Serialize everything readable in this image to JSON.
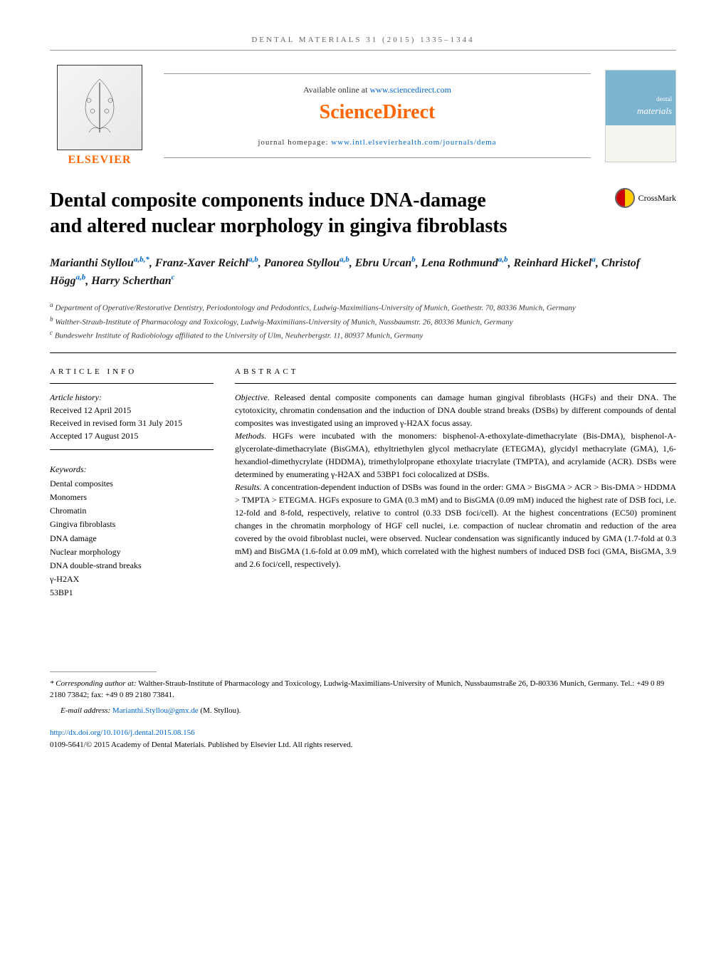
{
  "journal_header": "DENTAL MATERIALS 31 (2015) 1335–1344",
  "available_online": "Available online at",
  "sd_url": "www.sciencedirect.com",
  "sciencedirect": "ScienceDirect",
  "homepage_label": "journal homepage:",
  "homepage_url": "www.intl.elsevierhealth.com/journals/dema",
  "elsevier": "ELSEVIER",
  "cover_main": "materials",
  "cover_sub": "dental",
  "crossmark": "CrossMark",
  "title": "Dental composite components induce DNA-damage and altered nuclear morphology in gingiva fibroblasts",
  "authors_html": "Marianthi Styllou<sup>a,b,*</sup>, Franz-Xaver Reichl<sup>a,b</sup>, Panorea Styllou<sup>a,b</sup>, Ebru Urcan<sup>b</sup>, Lena Rothmund<sup>a,b</sup>, Reinhard Hickel<sup>a</sup>, Christof Högg<sup>a,b</sup>, Harry Scherthan<sup>c</sup>",
  "authors": [
    {
      "name": "Marianthi Styllou",
      "aff": "a,b,*"
    },
    {
      "name": "Franz-Xaver Reichl",
      "aff": "a,b"
    },
    {
      "name": "Panorea Styllou",
      "aff": "a,b"
    },
    {
      "name": "Ebru Urcan",
      "aff": "b"
    },
    {
      "name": "Lena Rothmund",
      "aff": "a,b"
    },
    {
      "name": "Reinhard Hickel",
      "aff": "a"
    },
    {
      "name": "Christof Högg",
      "aff": "a,b"
    },
    {
      "name": "Harry Scherthan",
      "aff": "c"
    }
  ],
  "affiliations": [
    {
      "sup": "a",
      "text": "Department of Operative/Restorative Dentistry, Periodontology and Pedodontics, Ludwig-Maximilians-University of Munich, Goethestr. 70, 80336 Munich, Germany"
    },
    {
      "sup": "b",
      "text": "Walther-Straub-Institute of Pharmacology and Toxicology, Ludwig-Maximilians-University of Munich, Nussbaumstr. 26, 80336 Munich, Germany"
    },
    {
      "sup": "c",
      "text": "Bundeswehr Institute of Radiobiology affiliated to the University of Ulm, Neuherbergstr. 11, 80937 Munich, Germany"
    }
  ],
  "article_info_header": "ARTICLE INFO",
  "abstract_header": "ABSTRACT",
  "history": {
    "label": "Article history:",
    "received": "Received 12 April 2015",
    "revised": "Received in revised form 31 July 2015",
    "accepted": "Accepted 17 August 2015"
  },
  "keywords_label": "Keywords:",
  "keywords": [
    "Dental composites",
    "Monomers",
    "Chromatin",
    "Gingiva fibroblasts",
    "DNA damage",
    "Nuclear morphology",
    "DNA double-strand breaks",
    "γ-H2AX",
    "53BP1"
  ],
  "abstract": {
    "objective_label": "Objective.",
    "objective": "Released dental composite components can damage human gingival fibroblasts (HGFs) and their DNA. The cytotoxicity, chromatin condensation and the induction of DNA double strand breaks (DSBs) by different compounds of dental composites was investigated using an improved γ-H2AX focus assay.",
    "methods_label": "Methods.",
    "methods": "HGFs were incubated with the monomers: bisphenol-A-ethoxylate-dimethacrylate (Bis-DMA), bisphenol-A-glycerolate-dimethacrylate (BisGMA), ethyltriethylen glycol methacrylate (ETEGMA), glycidyl methacrylate (GMA), 1,6-hexandiol-dimethycrylate (HDDMA), trimethylolpropane ethoxylate triacrylate (TMPTA), and acrylamide (ACR). DSBs were determined by enumerating γ-H2AX and 53BP1 foci colocalized at DSBs.",
    "results_label": "Results.",
    "results": "A concentration-dependent induction of DSBs was found in the order: GMA > BisGMA > ACR > Bis-DMA > HDDMA > TMPTA > ETEGMA. HGFs exposure to GMA (0.3 mM) and to BisGMA (0.09 mM) induced the highest rate of DSB foci, i.e. 12-fold and 8-fold, respectively, relative to control (0.33 DSB foci/cell). At the highest concentrations (EC50) prominent changes in the chromatin morphology of HGF cell nuclei, i.e. compaction of nuclear chromatin and reduction of the area covered by the ovoid fibroblast nuclei, were observed. Nuclear condensation was significantly induced by GMA (1.7-fold at 0.3 mM) and BisGMA (1.6-fold at 0.09 mM), which correlated with the highest numbers of induced DSB foci (GMA, BisGMA, 3.9 and 2.6 foci/cell, respectively)."
  },
  "corresponding_label": "* Corresponding author at:",
  "corresponding": "Walther-Straub-Institute of Pharmacology and Toxicology, Ludwig-Maximilians-University of Munich, Nussbaumstraße 26, D-80336 Munich, Germany. Tel.: +49 0 89 2180 73842; fax: +49 0 89 2180 73841.",
  "email_label": "E-mail address:",
  "email": "Marianthi.Styllou@gmx.de",
  "email_name": "(M. Styllou).",
  "doi": "http://dx.doi.org/10.1016/j.dental.2015.08.156",
  "copyright": "0109-5641/© 2015 Academy of Dental Materials. Published by Elsevier Ltd. All rights reserved.",
  "colors": {
    "orange": "#ff6600",
    "link_blue": "#0066cc",
    "text": "#000000",
    "gray": "#666666"
  }
}
